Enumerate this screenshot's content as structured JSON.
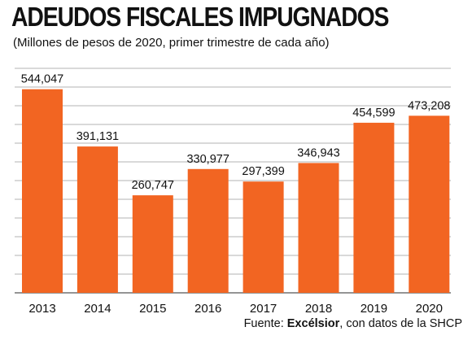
{
  "title": "ADEUDOS FISCALES IMPUGNADOS",
  "subtitle": "(Millones de pesos de 2020, primer trimestre de cada año)",
  "source": {
    "prefix": "Fuente: ",
    "brand": "Excélsior",
    "suffix": ", con datos de la SHCP"
  },
  "colors": {
    "bar": "#f26522",
    "grid": "#b3b3b3",
    "text": "#111111"
  },
  "chart_data": {
    "type": "bar",
    "categories": [
      "2013",
      "2014",
      "2015",
      "2016",
      "2017",
      "2018",
      "2019",
      "2020"
    ],
    "values": [
      544047,
      391131,
      260747,
      330977,
      297399,
      346943,
      454599,
      473208
    ],
    "value_labels": [
      "544,047",
      "391,131",
      "260,747",
      "330,977",
      "297,399",
      "346,943",
      "454,599",
      "473,208"
    ],
    "ylim": [
      0,
      600000
    ],
    "grid": true,
    "title": "ADEUDOS FISCALES IMPUGNADOS",
    "subtitle": "(Millones de pesos de 2020, primer trimestre de cada año)"
  }
}
